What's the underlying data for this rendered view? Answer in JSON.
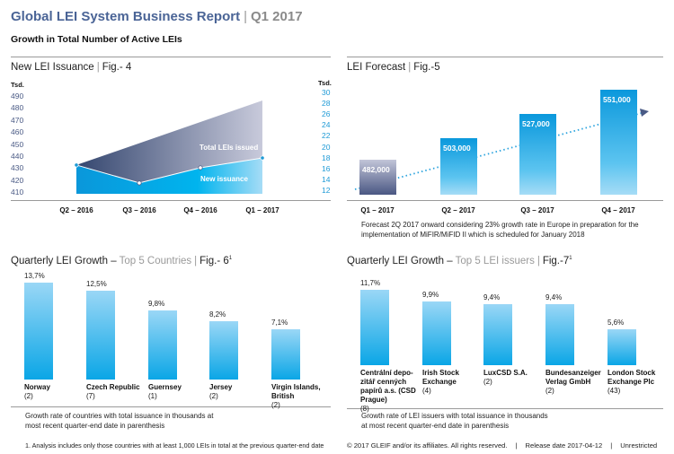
{
  "header": {
    "title": "Global LEI System Business Report",
    "separator": "|",
    "quarter": "Q1 2017",
    "subtitle": "Growth in Total Number of Active LEIs"
  },
  "colors": {
    "brand_navy": "#4a6496",
    "accent_blue": "#00a6e6",
    "navy_series": "#3d4f7a"
  },
  "chart_data": [
    {
      "type": "area",
      "title": "New LEI Issuance",
      "fig": "Fig.- 4",
      "unit_left": "Tsd.",
      "unit_right": "Tsd.",
      "categories": [
        "Q2 – 2016",
        "Q3 – 2016",
        "Q4 – 2016",
        "Q1 – 2017"
      ],
      "left_ticks": [
        490,
        480,
        470,
        460,
        450,
        440,
        430,
        420,
        410
      ],
      "right_ticks": [
        30,
        28,
        26,
        24,
        22,
        20,
        18,
        16,
        14,
        12
      ],
      "ylim_left": [
        410,
        490
      ],
      "ylim_right": [
        12,
        30
      ],
      "series": [
        {
          "name": "Total LEIs issued",
          "axis": "left",
          "values": [
            433,
            451,
            469,
            487
          ]
        },
        {
          "name": "New issuance",
          "axis": "right",
          "values": [
            16.8,
            13.5,
            16.3,
            18.1
          ]
        }
      ]
    },
    {
      "type": "bar",
      "title": "LEI Forecast",
      "fig": "Fig.-5",
      "categories": [
        "Q1 – 2017",
        "Q2 – 2017",
        "Q3 – 2017",
        "Q4 – 2017"
      ],
      "values": [
        482000,
        503000,
        527000,
        551000
      ],
      "labels": [
        "482,000",
        "503,000",
        "527,000",
        "551,000"
      ],
      "note": "Forecast 2Q 2017 onward considering 23% growth rate in Europe in preparation for the implementation of MiFIR/MiFID II which is scheduled for January 2018"
    },
    {
      "type": "bar",
      "title": "Quarterly LEI Growth –",
      "title_grey": "Top 5 Countries",
      "fig": "Fig.- 6",
      "sup": "1",
      "categories": [
        "Norway",
        "Czech Republic",
        "Guernsey",
        "Jersey",
        "Virgin Islands, British"
      ],
      "counts": [
        "(2)",
        "(7)",
        "(1)",
        "(2)",
        "(2)"
      ],
      "values": [
        13.7,
        12.5,
        9.8,
        8.2,
        7.1
      ],
      "labels": [
        "13,7%",
        "12,5%",
        "9,8%",
        "8,2%",
        "7,1%"
      ],
      "note": "Growth rate of countries with total issuance in thousands at most recent quarter-end date in parenthesis"
    },
    {
      "type": "bar",
      "title": "Quarterly LEI Growth –",
      "title_grey": "Top 5 LEI issuers",
      "fig": "Fig.-7",
      "sup": "1",
      "categories": [
        "Centrální depo-zitář cenných papírů a.s. (CSD Prague)",
        "Irish Stock Exchange",
        "LuxCSD S.A.",
        "Bundesanzeiger Verlag GmbH",
        "London Stock Exchange Plc"
      ],
      "counts": [
        "(8)",
        "(4)",
        "(2)",
        "(2)",
        "(43)"
      ],
      "values": [
        11.7,
        9.9,
        9.4,
        9.4,
        5.6
      ],
      "labels": [
        "11,7%",
        "9,9%",
        "9,4%",
        "9,4%",
        "5,6%"
      ],
      "note": "Growth rate of LEI issuers with total issuance in thousands at most recent quarter-end date in parenthesis"
    }
  ],
  "footnote": "1. Analysis includes only those countries with at least 1,000 LEIs in total at the previous quarter-end date",
  "footer": {
    "copyright": "© 2017 GLEIF and/or its affiliates. All rights reserved.",
    "sep": "|",
    "release": "Release date 2017-04-12",
    "class": "Unrestricted"
  }
}
